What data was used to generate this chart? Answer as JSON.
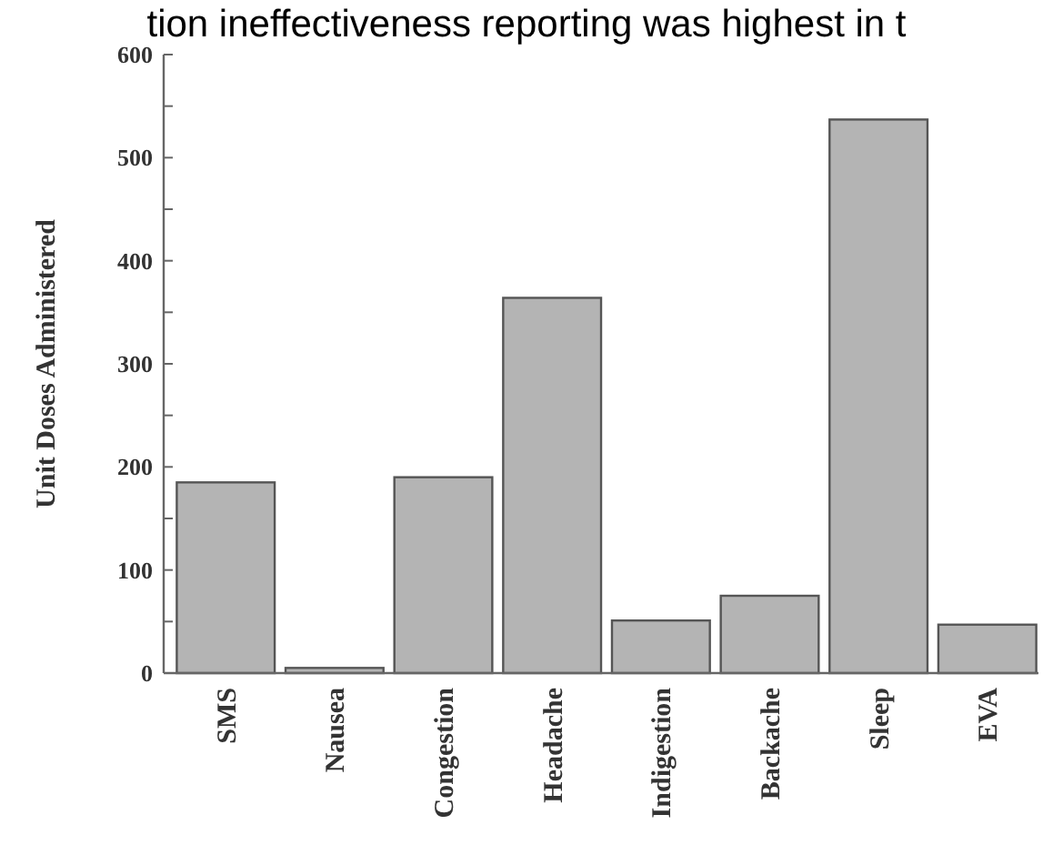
{
  "chart_data": {
    "type": "bar",
    "title": "tion ineffectiveness reporting was highest in t",
    "ylabel": "Unit Doses Administered",
    "categories": [
      "SMS",
      "Nausea",
      "Congestion",
      "Headache",
      "Indigestion",
      "Backache",
      "Sleep",
      "EVA"
    ],
    "values": [
      185,
      5,
      190,
      364,
      51,
      75,
      537,
      47
    ],
    "color": "#b4b4b4",
    "ylim": [
      0,
      600
    ],
    "yticks": [
      0,
      {
        "value": 50,
        "label": null
      },
      100,
      {
        "value": 150,
        "label": null
      },
      200,
      {
        "value": 250,
        "label": null
      },
      300,
      {
        "value": 350,
        "label": null
      },
      400,
      {
        "value": 450,
        "label": null
      },
      500,
      {
        "value": 550,
        "label": null
      },
      600
    ],
    "grid": false
  }
}
